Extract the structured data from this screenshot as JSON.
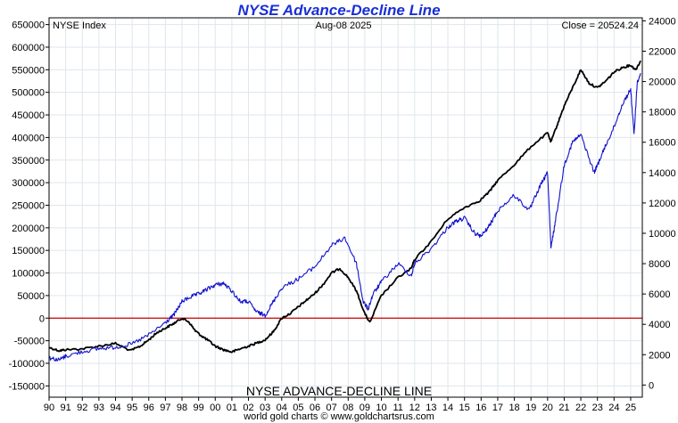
{
  "chart_data": {
    "type": "line",
    "title": "NYSE Advance-Decline Line",
    "top_left_label": "NYSE Index",
    "date_label": "Aug-08  2025",
    "close_label": "Close = 20524.24",
    "series_label": "NYSE ADVANCE-DECLINE LINE",
    "footer": "world gold charts © www.goldchartsrus.com",
    "x_tick_labels": [
      "90",
      "91",
      "92",
      "93",
      "94",
      "95",
      "96",
      "97",
      "98",
      "99",
      "00",
      "01",
      "02",
      "03",
      "04",
      "05",
      "06",
      "07",
      "08",
      "09",
      "10",
      "11",
      "12",
      "13",
      "14",
      "15",
      "16",
      "17",
      "18",
      "19",
      "20",
      "21",
      "22",
      "23",
      "24",
      "25"
    ],
    "x_range": [
      1990,
      2025.7
    ],
    "left_axis": {
      "ticks": [
        -150000,
        -100000,
        -50000,
        0,
        50000,
        100000,
        150000,
        200000,
        250000,
        300000,
        350000,
        400000,
        450000,
        500000,
        550000,
        600000,
        650000
      ],
      "range": [
        -175000,
        665000
      ]
    },
    "right_axis": {
      "ticks": [
        0,
        2000,
        4000,
        6000,
        8000,
        10000,
        12000,
        14000,
        16000,
        18000,
        20000,
        22000,
        24000
      ],
      "range": [
        -800,
        24200
      ]
    },
    "zero_line": {
      "value": 0,
      "color": "#cc0000"
    },
    "grid": true,
    "colors": {
      "ad_line": "#000000",
      "nyse_index": "#1010cc",
      "title": "#1a2fd6"
    },
    "series": [
      {
        "name": "NYSE ADVANCE-DECLINE LINE",
        "axis": "left",
        "x": [
          1990.0,
          1990.6,
          1991.0,
          1992.0,
          1993.0,
          1994.0,
          1994.9,
          1995.5,
          1996.0,
          1996.5,
          1997.0,
          1997.5,
          1998.0,
          1998.4,
          1998.8,
          1999.2,
          1999.6,
          2000.0,
          2000.5,
          2001.0,
          2001.5,
          2002.0,
          2002.5,
          2003.0,
          2003.5,
          2004.0,
          2004.5,
          2005.0,
          2005.5,
          2006.0,
          2006.5,
          2007.0,
          2007.5,
          2008.0,
          2008.5,
          2009.0,
          2009.3,
          2010.0,
          2011.0,
          2011.8,
          2012.0,
          2013.0,
          2014.0,
          2015.0,
          2015.9,
          2016.5,
          2017.0,
          2018.0,
          2019.0,
          2020.0,
          2020.2,
          2020.6,
          2021.0,
          2021.5,
          2022.0,
          2022.5,
          2023.0,
          2023.5,
          2024.0,
          2024.5,
          2025.0,
          2025.3,
          2025.6
        ],
        "y": [
          -65000,
          -72000,
          -70000,
          -68000,
          -62000,
          -56000,
          -72000,
          -62000,
          -48000,
          -32000,
          -22000,
          -12000,
          0,
          -8000,
          -28000,
          -40000,
          -50000,
          -62000,
          -70000,
          -75000,
          -68000,
          -62000,
          -55000,
          -48000,
          -30000,
          0,
          10000,
          25000,
          40000,
          55000,
          75000,
          100000,
          110000,
          90000,
          60000,
          10000,
          -10000,
          50000,
          90000,
          110000,
          130000,
          170000,
          220000,
          245000,
          260000,
          280000,
          305000,
          340000,
          380000,
          410000,
          390000,
          430000,
          470000,
          510000,
          550000,
          520000,
          510000,
          525000,
          545000,
          555000,
          560000,
          550000,
          570000
        ]
      },
      {
        "name": "NYSE Index",
        "axis": "right",
        "x": [
          1990.0,
          1990.6,
          1991.0,
          1992.0,
          1993.0,
          1994.0,
          1995.0,
          1996.0,
          1997.0,
          1997.5,
          1998.0,
          1998.5,
          1999.0,
          1999.5,
          2000.0,
          2000.5,
          2001.0,
          2001.5,
          2002.0,
          2002.5,
          2003.0,
          2003.5,
          2004.0,
          2005.0,
          2006.0,
          2007.0,
          2007.8,
          2008.5,
          2008.9,
          2009.2,
          2009.5,
          2010.0,
          2011.0,
          2011.8,
          2012.0,
          2013.0,
          2014.0,
          2014.5,
          2015.0,
          2015.6,
          2016.0,
          2016.5,
          2017.0,
          2018.0,
          2018.9,
          2019.5,
          2020.0,
          2020.2,
          2020.5,
          2021.0,
          2021.5,
          2022.0,
          2022.8,
          2023.0,
          2023.5,
          2024.0,
          2024.5,
          2025.0,
          2025.2,
          2025.4,
          2025.6
        ],
        "y": [
          1800,
          1650,
          1900,
          2200,
          2400,
          2500,
          2700,
          3300,
          4100,
          4600,
          5500,
          5800,
          6000,
          6300,
          6600,
          6700,
          6200,
          5500,
          5500,
          4800,
          4600,
          5500,
          6400,
          7000,
          7800,
          9200,
          9700,
          8000,
          5500,
          5000,
          6000,
          6800,
          8000,
          7200,
          8000,
          9000,
          10400,
          10800,
          11000,
          10000,
          9800,
          10500,
          11500,
          12500,
          11500,
          13000,
          14000,
          9000,
          11000,
          14500,
          16000,
          16500,
          14000,
          14500,
          15800,
          17000,
          18500,
          19500,
          16500,
          20000,
          20500
        ]
      }
    ]
  }
}
